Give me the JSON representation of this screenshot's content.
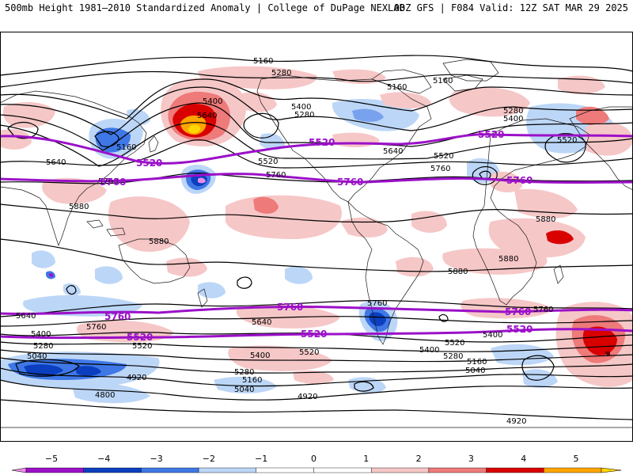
{
  "header": {
    "title_left": "500mb Height 1981–2010 Standardized Anomaly | College of DuPage NEXLAB",
    "title_right": "00Z GFS | F084 Valid: 12Z SAT MAR 29 2025"
  },
  "contour_labels": {
    "black": [
      "5160",
      "5280",
      "5400",
      "5160",
      "5160",
      "5280",
      "5400",
      "5640",
      "5520",
      "5760",
      "5400",
      "5280",
      "5160",
      "5640",
      "5520",
      "5760",
      "5880",
      "5880",
      "5880",
      "5640",
      "5520",
      "5880",
      "5880",
      "5760",
      "5640",
      "5400",
      "5760",
      "5520",
      "5280",
      "5040",
      "4920",
      "4800",
      "5640",
      "5400",
      "5520",
      "5280",
      "5160",
      "5040",
      "4920",
      "5760",
      "5520",
      "5400",
      "5280",
      "5160",
      "5040",
      "4920",
      "5760",
      "5400"
    ],
    "purple": [
      "5520",
      "5520",
      "5520",
      "5760",
      "5760",
      "5760",
      "5760",
      "5760",
      "5760",
      "5520",
      "5520",
      "5520"
    ]
  },
  "colorbar": {
    "ticks": [
      "−5",
      "−4",
      "−3",
      "−2",
      "−1",
      "0",
      "1",
      "2",
      "3",
      "4",
      "5"
    ],
    "colors": [
      "#e98be9",
      "#9b10c8",
      "#0c3fbf",
      "#3f78e6",
      "#bcd6f7",
      "#ffffff",
      "#ffffff",
      "#f6c7c7",
      "#ee7a7a",
      "#d90000",
      "#ffa500",
      "#ffd700"
    ]
  }
}
